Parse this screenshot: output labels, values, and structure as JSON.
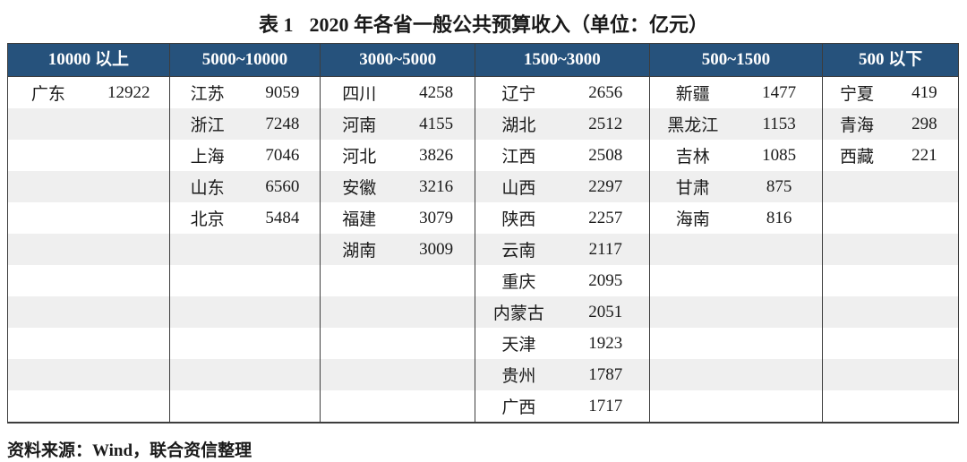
{
  "page": {
    "table_label": "表 1",
    "title": "2020 年各省一般公共预算收入（单位：亿元）",
    "source_note": "资料来源：Wind，联合资信整理"
  },
  "colors": {
    "header_bg": "#26527c",
    "header_text": "#ffffff",
    "stripe": "#efefef",
    "border": "#3d3d3d",
    "text": "#1a1a1a"
  },
  "table": {
    "row_count": 11,
    "columns": [
      {
        "header": "10000 以上",
        "entries": [
          {
            "province": "广东",
            "value": "12922"
          }
        ]
      },
      {
        "header": "5000~10000",
        "entries": [
          {
            "province": "江苏",
            "value": "9059"
          },
          {
            "province": "浙江",
            "value": "7248"
          },
          {
            "province": "上海",
            "value": "7046"
          },
          {
            "province": "山东",
            "value": "6560"
          },
          {
            "province": "北京",
            "value": "5484"
          }
        ]
      },
      {
        "header": "3000~5000",
        "entries": [
          {
            "province": "四川",
            "value": "4258"
          },
          {
            "province": "河南",
            "value": "4155"
          },
          {
            "province": "河北",
            "value": "3826"
          },
          {
            "province": "安徽",
            "value": "3216"
          },
          {
            "province": "福建",
            "value": "3079"
          },
          {
            "province": "湖南",
            "value": "3009"
          }
        ]
      },
      {
        "header": "1500~3000",
        "entries": [
          {
            "province": "辽宁",
            "value": "2656"
          },
          {
            "province": "湖北",
            "value": "2512"
          },
          {
            "province": "江西",
            "value": "2508"
          },
          {
            "province": "山西",
            "value": "2297"
          },
          {
            "province": "陕西",
            "value": "2257"
          },
          {
            "province": "云南",
            "value": "2117"
          },
          {
            "province": "重庆",
            "value": "2095"
          },
          {
            "province": "内蒙古",
            "value": "2051"
          },
          {
            "province": "天津",
            "value": "1923"
          },
          {
            "province": "贵州",
            "value": "1787"
          },
          {
            "province": "广西",
            "value": "1717"
          }
        ]
      },
      {
        "header": "500~1500",
        "entries": [
          {
            "province": "新疆",
            "value": "1477"
          },
          {
            "province": "黑龙江",
            "value": "1153"
          },
          {
            "province": "吉林",
            "value": "1085"
          },
          {
            "province": "甘肃",
            "value": "875"
          },
          {
            "province": "海南",
            "value": "816"
          }
        ]
      },
      {
        "header": "500 以下",
        "entries": [
          {
            "province": "宁夏",
            "value": "419"
          },
          {
            "province": "青海",
            "value": "298"
          },
          {
            "province": "西藏",
            "value": "221"
          }
        ]
      }
    ]
  }
}
